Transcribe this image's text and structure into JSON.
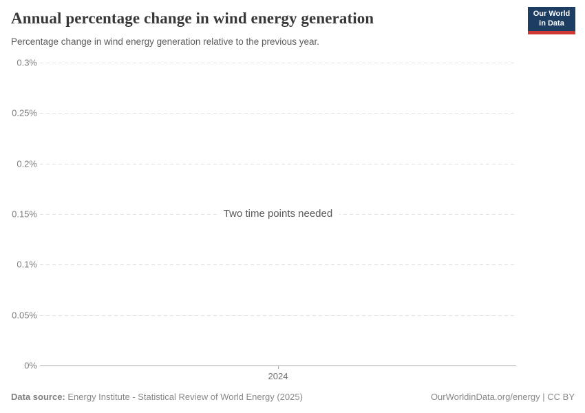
{
  "header": {
    "title": "Annual percentage change in wind energy generation",
    "subtitle": "Percentage change in wind energy generation relative to the previous year.",
    "logo": {
      "line1": "Our World",
      "line2": "in Data",
      "background_color": "#1d3d63",
      "accent_color": "#cf3935"
    }
  },
  "chart_data": {
    "type": "line",
    "title": "Annual percentage change in wind energy generation",
    "subtitle": "Percentage change in wind energy generation relative to the previous year.",
    "series": [],
    "empty_message": "Two time points needed",
    "y_axis": {
      "tick_labels": [
        "0.3%",
        "0.25%",
        "0.2%",
        "0.15%",
        "0.1%",
        "0.05%",
        "0%"
      ],
      "range": [
        0,
        0.3
      ],
      "unit": "%",
      "grid": "dashed"
    },
    "x_axis": {
      "tick_labels": [
        "2024"
      ]
    },
    "colors": {
      "gridline": "#e2e2e2",
      "axis": "#a9a9a9"
    }
  },
  "footer": {
    "datasource_label": "Data source:",
    "datasource_text": "Energy Institute - Statistical Review of World Energy (2025)",
    "license_text": "OurWorldinData.org/energy | CC BY"
  }
}
